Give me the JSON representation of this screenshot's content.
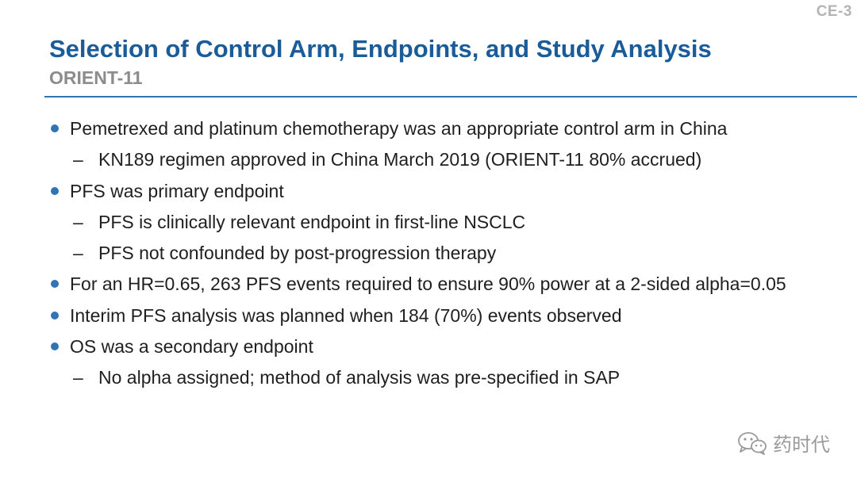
{
  "slide": {
    "id": "CE-3",
    "title": "Selection of Control Arm, Endpoints, and Study Analysis",
    "subtitle": "ORIENT-11"
  },
  "bullets": [
    {
      "level": 1,
      "text": "Pemetrexed and platinum chemotherapy was an appropriate control arm in China"
    },
    {
      "level": 2,
      "text": "KN189 regimen approved in China March 2019 (ORIENT-11 80% accrued)"
    },
    {
      "level": 1,
      "text": "PFS was primary endpoint"
    },
    {
      "level": 2,
      "text": "PFS is clinically relevant endpoint in first-line NSCLC"
    },
    {
      "level": 2,
      "text": "PFS not confounded by post-progression therapy"
    },
    {
      "level": 1,
      "text": "For an HR=0.65, 263 PFS events required to ensure 90% power at a 2-sided alpha=0.05"
    },
    {
      "level": 1,
      "text": "Interim PFS analysis was planned when 184 (70%) events observed"
    },
    {
      "level": 1,
      "text": "OS was a secondary endpoint"
    },
    {
      "level": 2,
      "text": "No alpha assigned; method of analysis was pre-specified in SAP"
    }
  ],
  "watermark": {
    "text": "药时代",
    "icon": "wechat-icon"
  },
  "colors": {
    "title": "#1a5c9a",
    "subtitle": "#8c8c8c",
    "accent": "#2f74b5",
    "slide_id": "#b4b4b4"
  }
}
